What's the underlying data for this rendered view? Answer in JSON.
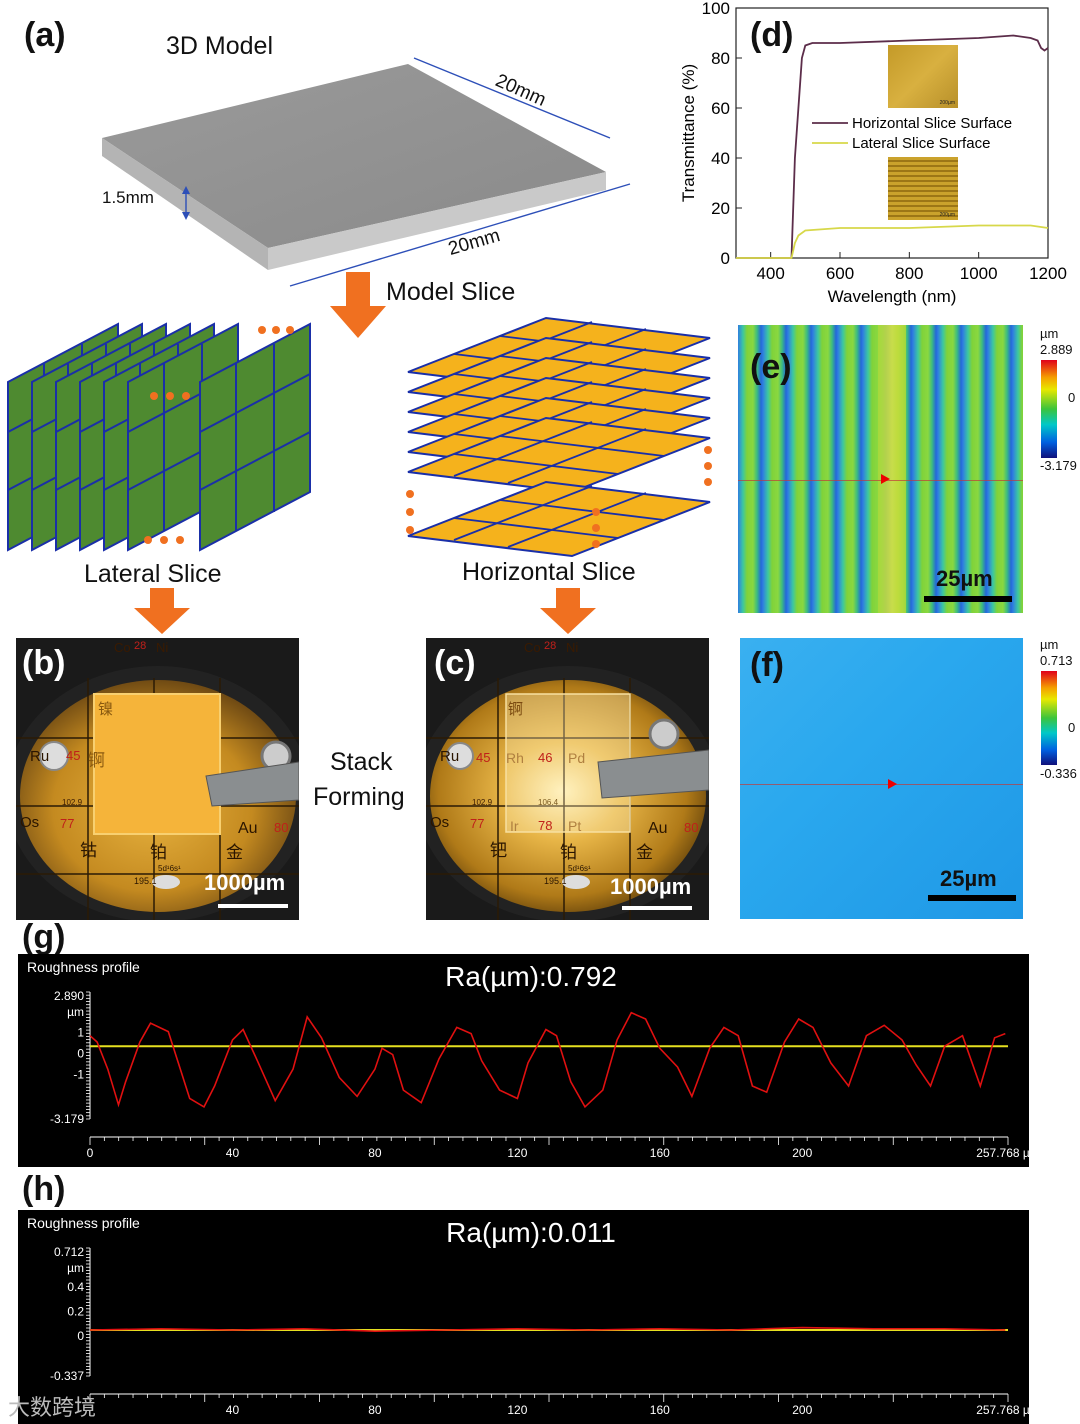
{
  "panels": {
    "a": {
      "label": "(a)",
      "model_title": "3D Model",
      "dim_top": "20mm",
      "dim_bottom": "20mm",
      "dim_thickness": "1.5mm",
      "arrow_label": "Model Slice",
      "lateral_label": "Lateral Slice",
      "horizontal_label": "Horizontal Slice"
    },
    "b": {
      "label": "(b)",
      "scale": "1000µm"
    },
    "c": {
      "label": "(c)",
      "scale": "1000µm"
    },
    "stack": {
      "line1": "Stack",
      "line2": "Forming"
    },
    "d": {
      "label": "(d)",
      "inset_scale": "200µm"
    },
    "e": {
      "label": "(e)",
      "scale": "25µm",
      "cbar_unit": "µm",
      "cbar_max": "2.889",
      "cbar_mid": "0",
      "cbar_min": "-3.179"
    },
    "f": {
      "label": "(f)",
      "scale": "25µm",
      "cbar_unit": "µm",
      "cbar_max": "0.713",
      "cbar_mid": "0",
      "cbar_min": "-0.336"
    },
    "g": {
      "label": "(g)",
      "title": "Roughness profile",
      "ra": "Ra(µm):0.792",
      "y_top": "2.890",
      "y_unit": "µm",
      "y_bottom": "-3.179"
    },
    "h": {
      "label": "(h)",
      "title": "Roughness profile",
      "ra": "Ra(µm):0.011",
      "y_top": "0.712",
      "y_unit": "µm",
      "y_bottom": "-0.337"
    }
  },
  "periodic_table_text": {
    "b": [
      "Co",
      "28",
      "Ni",
      "Ru",
      "45",
      "Os",
      "77",
      "Au",
      "80",
      "102.9",
      "锕",
      "铂",
      "金",
      "5d¹6s¹",
      "195.1",
      "钴",
      "镍"
    ],
    "c": [
      "Co",
      "28",
      "Ni",
      "Ru",
      "45",
      "Rh",
      "46",
      "Pd",
      "Os",
      "77",
      "Ir",
      "78",
      "Pt",
      "Au",
      "80",
      "102.9",
      "106.4",
      "钯",
      "铂",
      "金",
      "锕",
      "5d¹6s¹",
      "195.1"
    ]
  },
  "watermark": "大数跨境",
  "colors": {
    "arrow": "#f07020",
    "green_slice": "#4e8a30",
    "yellow_slice": "#f5b21c",
    "slice_edge": "#1a2fa8",
    "purple_curve": "#5c2d4a",
    "yellow_curve": "#d7d84a",
    "profile_red": "#e01010",
    "profile_mean": "#e6e020"
  },
  "chart_data": [
    {
      "type": "line",
      "panel": "(d)",
      "xlabel": "Wavelength (nm)",
      "ylabel": "Transmittance (%)",
      "xlim": [
        300,
        1200
      ],
      "ylim": [
        0,
        100
      ],
      "xticks": [
        "400",
        "600",
        "800",
        "1000",
        "1200"
      ],
      "yticks": [
        "0",
        "20",
        "40",
        "60",
        "80",
        "100"
      ],
      "legend_position": "center",
      "series": [
        {
          "name": "Horizontal Slice Surface",
          "x": [
            300,
            460,
            470,
            490,
            500,
            520,
            600,
            800,
            1000,
            1100,
            1150,
            1170,
            1180,
            1190,
            1200
          ],
          "y": [
            0,
            0,
            40,
            80,
            85,
            86,
            86,
            87,
            88,
            89,
            88,
            87,
            84,
            83,
            84
          ]
        },
        {
          "name": "Lateral Slice Surface",
          "x": [
            300,
            460,
            470,
            480,
            500,
            600,
            800,
            1000,
            1100,
            1150,
            1200
          ],
          "y": [
            0,
            0,
            6,
            9,
            11,
            12,
            12,
            13,
            13,
            13,
            12
          ]
        }
      ]
    },
    {
      "type": "line",
      "panel": "(g)",
      "xlabel": "",
      "ylabel": "µm",
      "xlim": [
        0,
        257.768
      ],
      "ylim": [
        -3.179,
        2.89
      ],
      "xticks": [
        "0",
        "40",
        "80",
        "120",
        "160",
        "200",
        "257.768 µm"
      ],
      "yticks": [
        "1",
        "0",
        "-1"
      ],
      "series": [
        {
          "name": "Roughness profile",
          "x": [
            0,
            2,
            5,
            8,
            10,
            14,
            17,
            22,
            25,
            28,
            32,
            35,
            40,
            43,
            47,
            52,
            57,
            61,
            65,
            70,
            75,
            80,
            82,
            85,
            88,
            93,
            98,
            103,
            107,
            110,
            115,
            120,
            123,
            128,
            131,
            135,
            139,
            144,
            148,
            152,
            156,
            160,
            165,
            169,
            174,
            178,
            182,
            186,
            190,
            195,
            199,
            203,
            208,
            213,
            218,
            223,
            228,
            232,
            236,
            240,
            245,
            250,
            254,
            257
          ],
          "y": [
            0.8,
            0.5,
            -0.8,
            -2.5,
            -1.4,
            0.5,
            1.4,
            1.0,
            -0.6,
            -2.2,
            -2.6,
            -1.6,
            0.6,
            1.1,
            -0.4,
            -2.3,
            -0.8,
            1.7,
            0.7,
            -1.2,
            -2.1,
            -0.8,
            0.2,
            -0.1,
            -1.8,
            -2.4,
            -0.3,
            1.2,
            0.9,
            -0.4,
            -1.8,
            -2.2,
            -0.5,
            1.1,
            0.8,
            -1.4,
            -2.6,
            -1.8,
            0.6,
            1.9,
            1.6,
            0.2,
            -0.7,
            -2.1,
            0.2,
            1.2,
            0.8,
            -1.6,
            -1.9,
            0.5,
            1.6,
            1.2,
            -0.5,
            -1.6,
            0.8,
            1.3,
            0.6,
            -0.6,
            -1.6,
            0.3,
            0.8,
            -1.6,
            0.7,
            0.9
          ]
        }
      ]
    },
    {
      "type": "line",
      "panel": "(h)",
      "xlabel": "",
      "ylabel": "µm",
      "xlim": [
        0,
        257.768
      ],
      "ylim": [
        -0.337,
        0.712
      ],
      "xticks": [
        "40",
        "80",
        "120",
        "160",
        "200",
        "257.768 µm"
      ],
      "yticks": [
        "0.4",
        "0.2",
        "0"
      ],
      "series": [
        {
          "name": "Roughness profile",
          "x": [
            0,
            20,
            40,
            60,
            80,
            100,
            120,
            140,
            160,
            180,
            200,
            220,
            240,
            257
          ],
          "y": [
            0.04,
            0.05,
            0.04,
            0.05,
            0.03,
            0.04,
            0.05,
            0.04,
            0.05,
            0.04,
            0.06,
            0.05,
            0.05,
            0.04
          ]
        }
      ]
    }
  ]
}
